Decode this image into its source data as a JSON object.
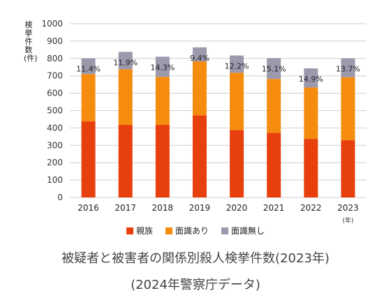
{
  "chart_data": {
    "type": "bar",
    "stacked": true,
    "ylabel": "検挙件数(件)",
    "xunit": "(年)",
    "ylim": [
      0,
      1000
    ],
    "yticks": [
      0,
      100,
      200,
      300,
      400,
      500,
      600,
      700,
      800,
      900,
      1000
    ],
    "grid": true,
    "legend_position": "bottom",
    "categories": [
      "2016",
      "2017",
      "2018",
      "2019",
      "2020",
      "2021",
      "2022",
      "2023"
    ],
    "series": [
      {
        "name": "親族",
        "color": "#e8400c",
        "values": [
          438,
          418,
          418,
          473,
          388,
          372,
          337,
          330
        ]
      },
      {
        "name": "面識あり",
        "color": "#f58c0e",
        "values": [
          272,
          320,
          276,
          310,
          330,
          310,
          296,
          362
        ]
      },
      {
        "name": "面識無し",
        "color": "#9d99ad",
        "values": [
          91,
          100,
          116,
          81,
          99,
          120,
          110,
          109
        ]
      }
    ],
    "bar_labels": [
      "11.4%",
      "11.9%",
      "14.3%",
      "9.4%",
      "12.2%",
      "15.1%",
      "14.9%",
      "13.7%"
    ],
    "title": "被疑者と被害者の関係別殺人検挙件数(2023年)",
    "subtitle": "(2024年警察庁データ)"
  }
}
